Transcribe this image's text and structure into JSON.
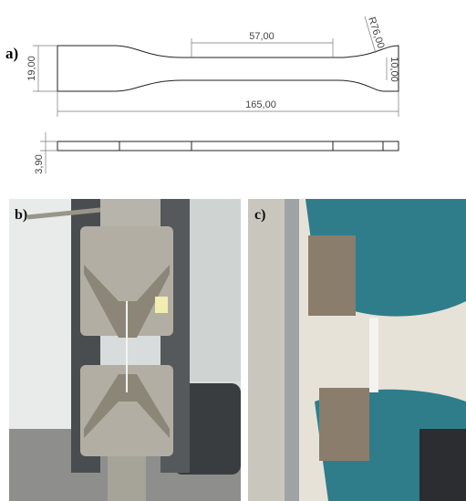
{
  "panel_a": {
    "label": "a)",
    "dimensions": {
      "gauge_length": "57,00",
      "radius": "R76,00",
      "width": "19,00",
      "gauge_width": "10,00",
      "total_length": "165,00",
      "thickness": "3,90"
    }
  },
  "panel_b": {
    "label": "b)"
  },
  "panel_c": {
    "label": "c)"
  }
}
